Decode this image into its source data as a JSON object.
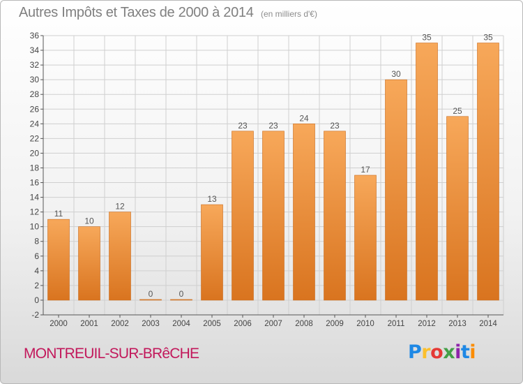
{
  "title": "Autres Impôts et Taxes de 2000 à 2014",
  "subtitle": "(en milliers d'€)",
  "place": "MONTREUIL-SUR-BRêCHE",
  "logo": {
    "letters": [
      "P",
      "r",
      "o",
      "x",
      "i",
      "t",
      "i"
    ],
    "colors": [
      "#1e88e5",
      "#fbc02d",
      "#e53935",
      "#43a047",
      "#8e24aa",
      "#1e88e5",
      "#fb8c00"
    ]
  },
  "colors": {
    "bar_top": "#f7a85a",
    "bar_bottom": "#d9741f",
    "bar_edge": "#c86a1c",
    "grid": "#cfcfcf"
  },
  "chart_data": {
    "type": "bar",
    "categories": [
      "2000",
      "2001",
      "2002",
      "2003",
      "2004",
      "2005",
      "2006",
      "2007",
      "2008",
      "2009",
      "2010",
      "2011",
      "2012",
      "2013",
      "2014"
    ],
    "values": [
      11,
      10,
      12,
      0,
      0,
      13,
      23,
      23,
      24,
      23,
      17,
      30,
      35,
      25,
      35
    ],
    "data_labels": [
      "11",
      "10",
      "12",
      "0",
      "0",
      "13",
      "23",
      "23",
      "24",
      "23",
      "17",
      "30",
      "35",
      "25",
      "35"
    ],
    "ylim": [
      -2,
      36
    ],
    "yticks": [
      "-2",
      "0",
      "2",
      "4",
      "6",
      "8",
      "10",
      "12",
      "14",
      "16",
      "18",
      "20",
      "22",
      "24",
      "26",
      "28",
      "30",
      "32",
      "34",
      "36"
    ],
    "grid": true,
    "xlabel": "",
    "ylabel": ""
  }
}
